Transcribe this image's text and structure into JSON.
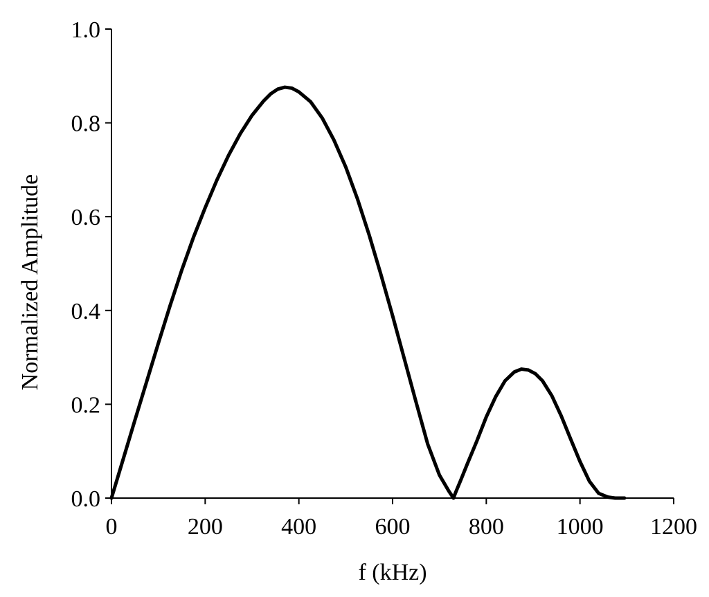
{
  "chart_data": {
    "type": "line",
    "title": "",
    "xlabel": "f (kHz)",
    "ylabel": "Normalized Amplitude",
    "xlim": [
      0,
      1200
    ],
    "ylim": [
      0,
      1.0
    ],
    "x_ticks": [
      0,
      200,
      400,
      600,
      800,
      1000,
      1200
    ],
    "x_tick_labels": [
      "0",
      "200",
      "400",
      "600",
      "800",
      "1000",
      "1200"
    ],
    "y_ticks": [
      0,
      0.2,
      0.4,
      0.6,
      0.8,
      1.0
    ],
    "y_tick_labels": [
      "0.0",
      "0.2",
      "0.4",
      "0.6",
      "0.8",
      "1.0"
    ],
    "grid": false,
    "legend": "none",
    "line_color": "#000000",
    "series": [
      {
        "x": [
          0,
          25,
          50,
          75,
          100,
          125,
          150,
          175,
          200,
          225,
          250,
          275,
          300,
          325,
          340,
          355,
          370,
          385,
          400,
          425,
          450,
          475,
          500,
          525,
          550,
          575,
          600,
          625,
          650,
          675,
          700,
          720,
          730,
          735,
          745,
          760,
          780,
          800,
          820,
          840,
          860,
          875,
          890,
          905,
          920,
          940,
          960,
          980,
          1000,
          1020,
          1040,
          1060,
          1075,
          1085,
          1095
        ],
        "y": [
          0.0,
          0.083,
          0.166,
          0.248,
          0.33,
          0.41,
          0.486,
          0.556,
          0.619,
          0.678,
          0.731,
          0.777,
          0.816,
          0.847,
          0.862,
          0.872,
          0.876,
          0.874,
          0.866,
          0.845,
          0.81,
          0.763,
          0.706,
          0.638,
          0.561,
          0.477,
          0.389,
          0.297,
          0.205,
          0.115,
          0.049,
          0.015,
          0.0,
          0.013,
          0.037,
          0.074,
          0.122,
          0.173,
          0.216,
          0.25,
          0.269,
          0.275,
          0.273,
          0.265,
          0.25,
          0.218,
          0.175,
          0.126,
          0.078,
          0.036,
          0.01,
          0.002,
          0.0,
          0.0,
          0.0
        ]
      }
    ]
  }
}
